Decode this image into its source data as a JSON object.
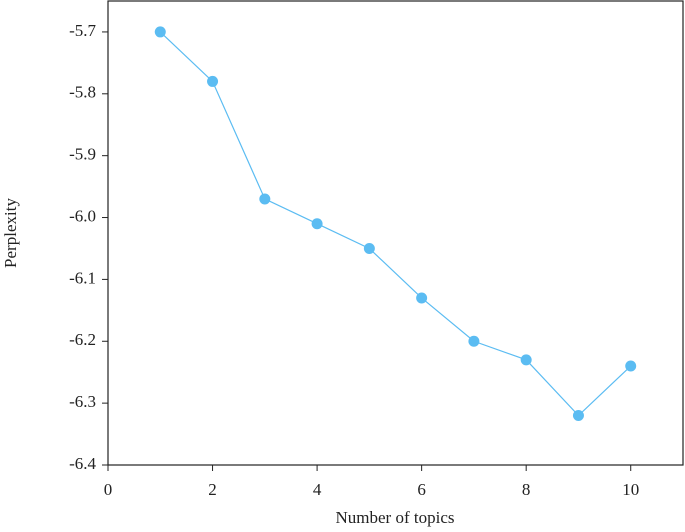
{
  "chart_data": {
    "type": "line",
    "x_label": "Number of topics",
    "y_label": "Perplexity",
    "x": [
      1,
      2,
      3,
      4,
      5,
      6,
      7,
      8,
      9,
      10
    ],
    "series": [
      {
        "color": "#5bbcf2",
        "values": [
          -5.7,
          -5.78,
          -5.97,
          -6.01,
          -6.05,
          -6.13,
          -6.2,
          -6.23,
          -6.32,
          -6.24
        ]
      }
    ],
    "xlim": [
      0,
      11
    ],
    "xticks": [
      0,
      2,
      4,
      6,
      8,
      10
    ],
    "ylim": [
      -6.4,
      -5.65
    ],
    "yticks": [
      -6.4,
      -6.3,
      -6.2,
      -6.1,
      {
        "value": -6,
        "label": "-6.0"
      },
      -5.9,
      -5.8,
      -5.7
    ]
  }
}
